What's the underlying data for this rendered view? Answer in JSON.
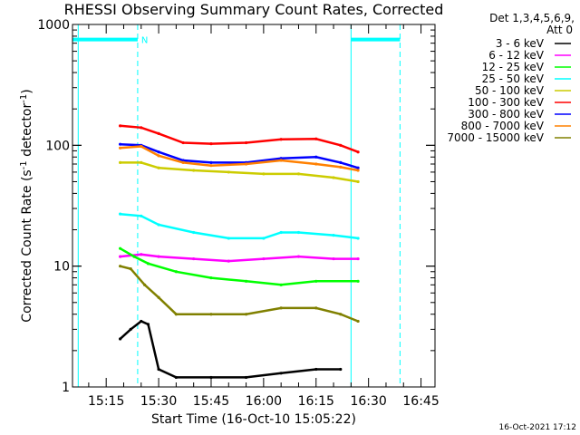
{
  "chart_data": {
    "type": "line",
    "title": "RHESSI Observing Summary Count Rates, Corrected",
    "xlabel": "Start Time (16-Oct-10 15:05:22)",
    "ylabel_parts": [
      "Corrected Count Rate (s",
      "-1",
      " detector",
      "-1",
      ")"
    ],
    "y_scale": "log",
    "ylim": [
      1,
      1000
    ],
    "xlim_minutes": [
      "15:05:22",
      "16:49:00"
    ],
    "x_tick_labels": [
      "15:15",
      "15:30",
      "15:45",
      "16:00",
      "16:15",
      "16:30",
      "16:45"
    ],
    "y_tick_labels": [
      "1",
      "10",
      "100",
      "1000"
    ],
    "grid": false,
    "legend_placement": "right",
    "legend_header": [
      "Det 1,3,4,5,6,9,",
      "Att 0"
    ],
    "series": [
      {
        "name": "3 - 6 keV",
        "color": "#000000",
        "x": [
          "15:19",
          "15:22",
          "15:25",
          "15:27",
          "15:30",
          "15:35",
          "15:45",
          "15:55",
          "16:05",
          "16:15",
          "16:22"
        ],
        "values": [
          2.5,
          3,
          3.5,
          3.3,
          1.4,
          1.2,
          1.2,
          1.2,
          1.3,
          1.4,
          1.4
        ]
      },
      {
        "name": "6 - 12 keV",
        "color": "#ff00ff",
        "x": [
          "15:19",
          "15:25",
          "15:30",
          "15:40",
          "15:50",
          "16:00",
          "16:10",
          "16:20",
          "16:27"
        ],
        "values": [
          12,
          12.5,
          12,
          11.5,
          11,
          11.5,
          12,
          11.5,
          11.5
        ]
      },
      {
        "name": "12 - 25 keV",
        "color": "#00ff00",
        "x": [
          "15:19",
          "15:23",
          "15:27",
          "15:35",
          "15:45",
          "15:55",
          "16:05",
          "16:15",
          "16:27"
        ],
        "values": [
          14,
          12,
          10.5,
          9,
          8,
          7.5,
          7,
          7.5,
          7.5
        ]
      },
      {
        "name": "25 - 50 keV",
        "color": "#00ffff",
        "x": [
          "15:19",
          "15:25",
          "15:30",
          "15:40",
          "15:50",
          "16:00",
          "16:05",
          "16:10",
          "16:20",
          "16:27"
        ],
        "values": [
          27,
          26,
          22,
          19,
          17,
          17,
          19,
          19,
          18,
          17
        ]
      },
      {
        "name": "50 - 100 keV",
        "color": "#cccc00",
        "x": [
          "15:19",
          "15:25",
          "15:30",
          "15:40",
          "15:50",
          "16:00",
          "16:10",
          "16:20",
          "16:27"
        ],
        "values": [
          72,
          72,
          65,
          62,
          60,
          58,
          58,
          54,
          50
        ]
      },
      {
        "name": "100 - 300 keV",
        "color": "#ff0000",
        "x": [
          "15:19",
          "15:25",
          "15:30",
          "15:37",
          "15:45",
          "15:55",
          "16:05",
          "16:15",
          "16:22",
          "16:27"
        ],
        "values": [
          145,
          140,
          125,
          105,
          103,
          105,
          112,
          113,
          100,
          88
        ]
      },
      {
        "name": "300 - 800 keV",
        "color": "#0000ff",
        "x": [
          "15:19",
          "15:25",
          "15:30",
          "15:37",
          "15:45",
          "15:55",
          "16:05",
          "16:15",
          "16:22",
          "16:27"
        ],
        "values": [
          102,
          100,
          88,
          75,
          72,
          72,
          78,
          80,
          72,
          65
        ]
      },
      {
        "name": "800 - 7000 keV",
        "color": "#ff8000",
        "x": [
          "15:19",
          "15:25",
          "15:30",
          "15:37",
          "15:45",
          "15:55",
          "16:05",
          "16:15",
          "16:22",
          "16:27"
        ],
        "values": [
          95,
          98,
          82,
          72,
          68,
          70,
          75,
          70,
          66,
          62
        ]
      },
      {
        "name": "7000 - 15000 keV",
        "color": "#808000",
        "x": [
          "15:19",
          "15:22",
          "15:26",
          "15:30",
          "15:35",
          "15:45",
          "15:55",
          "16:05",
          "16:15",
          "16:22",
          "16:27"
        ],
        "values": [
          10,
          9.5,
          7,
          5.5,
          4,
          4,
          4,
          4.5,
          4.5,
          4,
          3.5
        ]
      }
    ],
    "annotations": {
      "night_marker_label": "N",
      "segment_color": "#00ffff",
      "dashed_line_times": [
        "15:24",
        "16:39"
      ],
      "solid_line_times": [
        "15:07",
        "16:25"
      ],
      "bar_segments": [
        [
          "15:05:22",
          "15:24"
        ],
        [
          "16:25",
          "16:39"
        ]
      ],
      "bar_level": 750
    }
  },
  "footer": {
    "timestamp": "16-Oct-2021 17:12"
  }
}
